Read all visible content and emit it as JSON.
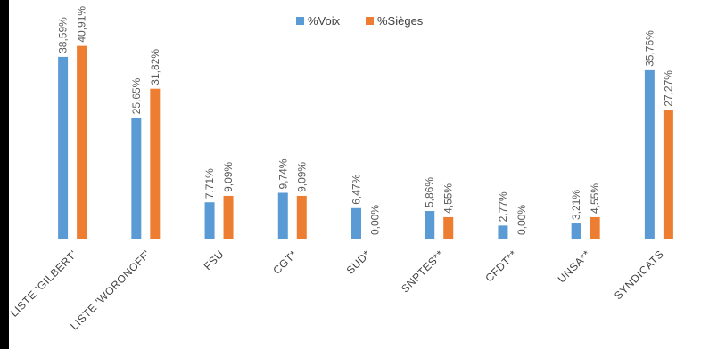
{
  "chart_data": {
    "type": "bar",
    "title": "",
    "xlabel": "",
    "ylabel": "",
    "ylim": [
      0,
      45
    ],
    "grid": false,
    "legend_position": "top",
    "categories": [
      "LISTE 'GILBERT'",
      "LISTE 'WORONOFF'",
      "FSU",
      "CGT*",
      "SUD*",
      "SNPTES**",
      "CFDT**",
      "UNSA**",
      "SYNDICATS"
    ],
    "series": [
      {
        "name": "%Voix",
        "color": "#5b9bd5",
        "values": [
          38.59,
          25.65,
          7.71,
          9.74,
          6.47,
          5.86,
          2.77,
          3.21,
          35.76
        ],
        "labels": [
          "38,59%",
          "25,65%",
          "7,71%",
          "9,74%",
          "6,47%",
          "5,86%",
          "2,77%",
          "3,21%",
          "35,76%"
        ]
      },
      {
        "name": "%Sièges",
        "color": "#ed7d31",
        "values": [
          40.91,
          31.82,
          9.09,
          9.09,
          0.0,
          4.55,
          0.0,
          4.55,
          27.27
        ],
        "labels": [
          "40,91%",
          "31,82%",
          "9,09%",
          "9,09%",
          "0,00%",
          "4,55%",
          "0,00%",
          "4,55%",
          "27,27%"
        ]
      }
    ]
  }
}
